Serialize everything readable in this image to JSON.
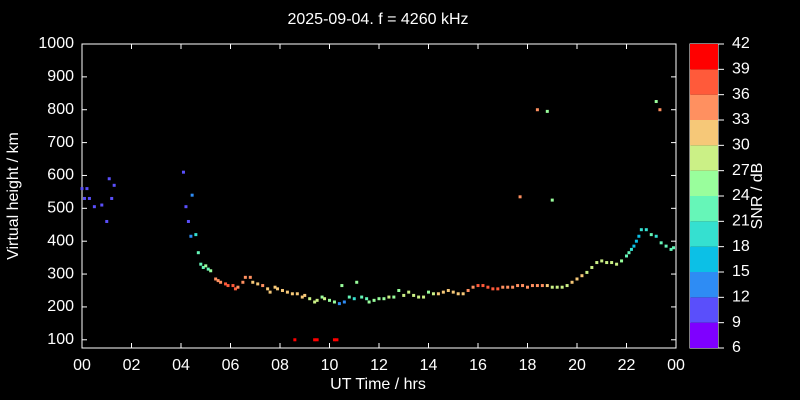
{
  "chart_data": {
    "type": "scatter",
    "title": "2025-09-04. f = 4260 kHz",
    "x_label": "UT Time / hrs",
    "y_label": "Virtual height / km",
    "xlim": [
      0,
      24
    ],
    "ylim": [
      75,
      1000
    ],
    "xticks": [
      {
        "value": 0,
        "label": "00"
      },
      {
        "value": 2,
        "label": "02"
      },
      {
        "value": 4,
        "label": "04"
      },
      {
        "value": 6,
        "label": "06"
      },
      {
        "value": 8,
        "label": "08"
      },
      10,
      12,
      14,
      16,
      18,
      20,
      22,
      {
        "value": 24,
        "label": "00"
      }
    ],
    "yticks": [
      100,
      200,
      300,
      400,
      500,
      600,
      700,
      800,
      900,
      1000
    ],
    "colorbar": {
      "label": "SNR / dB",
      "ticks": [
        6,
        9,
        12,
        15,
        18,
        21,
        24,
        27,
        30,
        33,
        36,
        39,
        42
      ],
      "colors": [
        "#7f00ff",
        "#5a4ffb",
        "#2e8cf4",
        "#0cc0e6",
        "#35e0d0",
        "#66f6b8",
        "#99fe9c",
        "#cbf086",
        "#f6c878",
        "#ff9060",
        "#ff5a3a",
        "#ff0000"
      ]
    },
    "x": [
      0.0,
      0.1,
      0.2,
      0.3,
      0.5,
      0.8,
      1.0,
      1.1,
      1.2,
      1.3,
      4.1,
      4.2,
      4.3,
      4.4,
      4.45,
      4.6,
      4.7,
      4.8,
      4.9,
      5.0,
      5.1,
      5.2,
      5.4,
      5.5,
      5.6,
      5.8,
      5.9,
      6.1,
      6.2,
      6.3,
      6.5,
      6.6,
      6.8,
      6.9,
      7.1,
      7.3,
      7.5,
      7.6,
      7.8,
      7.9,
      8.1,
      8.3,
      8.5,
      8.7,
      8.9,
      9.0,
      9.2,
      9.4,
      9.5,
      9.7,
      9.8,
      10.0,
      10.2,
      10.4,
      10.6,
      10.5,
      10.8,
      11.0,
      11.1,
      11.3,
      11.5,
      11.6,
      11.8,
      12.0,
      12.2,
      12.4,
      12.6,
      12.8,
      13.0,
      13.2,
      13.4,
      13.6,
      13.8,
      14.0,
      14.2,
      14.4,
      14.6,
      14.8,
      15.0,
      15.2,
      15.4,
      15.6,
      15.8,
      16.0,
      16.2,
      16.4,
      16.6,
      16.8,
      17.0,
      17.2,
      17.4,
      17.6,
      17.8,
      18.0,
      18.2,
      18.4,
      18.6,
      18.8,
      19.0,
      19.2,
      19.4,
      19.6,
      19.8,
      20.0,
      20.2,
      20.4,
      20.6,
      20.8,
      21.0,
      21.2,
      21.4,
      21.6,
      21.8,
      22.0,
      22.1,
      22.2,
      22.3,
      22.4,
      22.5,
      22.6,
      22.8,
      23.0,
      23.2,
      23.4,
      23.6,
      23.8,
      23.9,
      8.6,
      9.4,
      9.5,
      10.2,
      10.3,
      17.7,
      18.4,
      18.8,
      19.0,
      23.2,
      23.35
    ],
    "y": [
      560,
      530,
      560,
      530,
      505,
      510,
      460,
      590,
      530,
      570,
      610,
      505,
      460,
      415,
      540,
      420,
      365,
      330,
      320,
      325,
      315,
      310,
      285,
      280,
      275,
      270,
      265,
      265,
      255,
      260,
      275,
      290,
      290,
      275,
      270,
      265,
      255,
      245,
      260,
      255,
      250,
      245,
      240,
      240,
      230,
      235,
      225,
      215,
      220,
      230,
      225,
      220,
      215,
      210,
      215,
      265,
      230,
      225,
      275,
      230,
      225,
      215,
      220,
      225,
      225,
      230,
      230,
      250,
      235,
      245,
      235,
      230,
      230,
      245,
      240,
      240,
      245,
      250,
      245,
      240,
      240,
      250,
      260,
      265,
      265,
      260,
      255,
      255,
      260,
      260,
      260,
      265,
      265,
      260,
      265,
      265,
      265,
      265,
      260,
      260,
      260,
      265,
      275,
      285,
      295,
      305,
      320,
      335,
      340,
      335,
      335,
      330,
      340,
      355,
      365,
      375,
      385,
      400,
      415,
      435,
      435,
      420,
      415,
      395,
      385,
      375,
      380,
      100,
      100,
      100,
      100,
      100,
      535,
      800,
      795,
      525,
      825,
      800
    ],
    "snr": [
      11,
      10,
      10,
      10,
      11,
      11,
      11,
      10,
      10,
      11,
      10,
      11,
      11,
      12,
      12,
      20,
      22,
      23,
      22,
      24,
      23,
      25,
      33,
      34,
      34,
      37,
      38,
      38,
      36,
      35,
      35,
      35,
      33,
      32,
      31,
      33,
      31,
      32,
      30,
      31,
      31,
      30,
      31,
      30,
      30,
      30,
      28,
      28,
      28,
      26,
      27,
      26,
      26,
      14,
      14,
      25,
      22,
      20,
      24,
      21,
      22,
      24,
      25,
      24,
      25,
      27,
      26,
      25,
      27,
      27,
      28,
      28,
      27,
      26,
      28,
      30,
      30,
      30,
      30,
      31,
      31,
      33,
      35,
      36,
      37,
      38,
      36,
      36,
      35,
      35,
      35,
      33,
      33,
      33,
      34,
      35,
      34,
      31,
      29,
      28,
      28,
      28,
      31,
      32,
      30,
      29,
      28,
      27,
      27,
      28,
      27,
      28,
      24,
      22,
      21,
      19,
      16,
      15,
      17,
      19,
      19,
      21,
      20,
      22,
      21,
      22,
      23,
      39,
      39,
      39,
      39,
      39,
      35,
      34,
      25,
      26,
      25,
      33
    ]
  }
}
